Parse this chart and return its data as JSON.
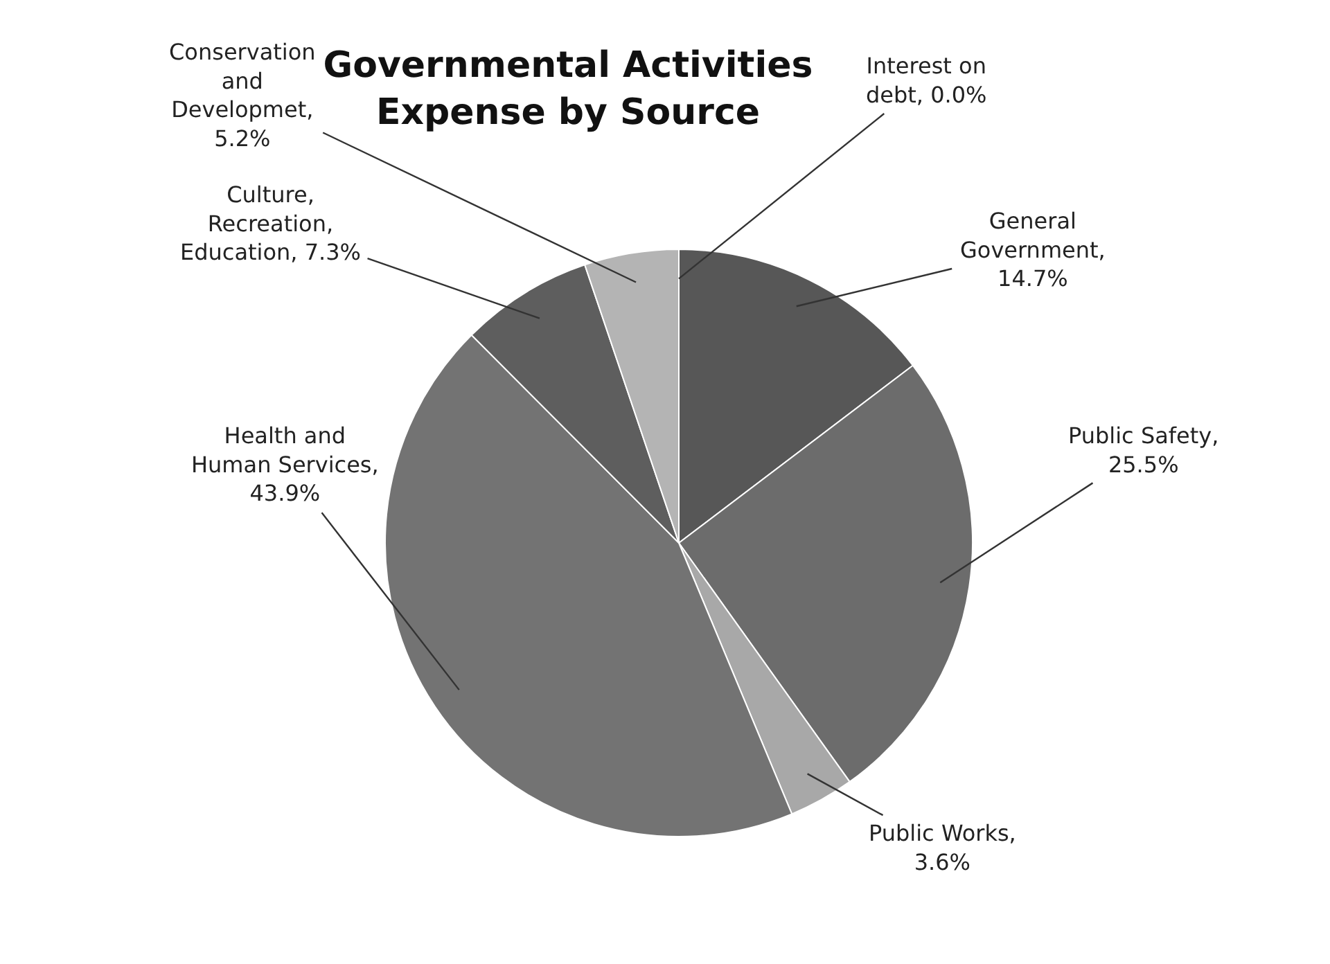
{
  "chart_data": {
    "type": "pie",
    "title": "Governmental Activities Expense by Source",
    "categories": [
      "Interest on debt, 0.0%",
      "General Government, 14.7%",
      "Public Safety, 25.5%",
      "Public Works, 3.6%",
      "Health and Human Services, 43.9%",
      "Culture, Recreation, Education, 7.3%",
      "Conservation and Developmet, 5.2%"
    ],
    "values": [
      0.0,
      14.7,
      25.5,
      3.6,
      43.9,
      7.3,
      5.2
    ],
    "colors": [
      "#404040",
      "#575757",
      "#6c6c6c",
      "#a8a8a8",
      "#737373",
      "#5e5e5e",
      "#b4b4b4"
    ],
    "legend": false
  }
}
